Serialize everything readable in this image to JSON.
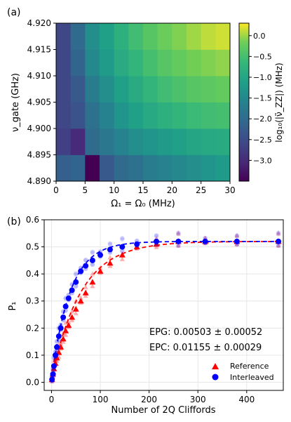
{
  "panel_a": {
    "label": "(a)",
    "xlabel": "Ω₁ = Ω₀ (MHz)",
    "ylabel": "ν_gate (GHz)",
    "colorbar_label": "log₁₀(|ν̃_ZZ|) (MHz)"
  },
  "panel_b": {
    "label": "(b)",
    "xlabel": "Number of 2Q Cliffords",
    "ylabel": "P₁",
    "epg_text": "EPG: 0.00503 ± 0.00052",
    "epc_text": "EPC: 0.01155 ± 0.00029",
    "legend_reference": "Reference",
    "legend_interleaved": "Interleaved"
  },
  "chart_data": [
    {
      "type": "heatmap",
      "title": "",
      "xlabel": "Ω₁ = Ω₀ (MHz)",
      "ylabel": "ν_gate (GHz)",
      "x_ticks": [
        0,
        5,
        10,
        15,
        20,
        25,
        30
      ],
      "y_ticks": [
        4.89,
        4.895,
        4.9,
        4.905,
        4.91,
        4.915,
        4.92
      ],
      "xlim": [
        0,
        30
      ],
      "ylim": [
        4.89,
        4.92
      ],
      "x_centers": [
        1.25,
        3.75,
        6.25,
        8.75,
        11.25,
        13.75,
        16.25,
        18.75,
        21.25,
        23.75,
        26.25,
        28.75
      ],
      "y_centers": [
        4.8925,
        4.8975,
        4.9025,
        4.9075,
        4.9125,
        4.9175
      ],
      "values_rows_bottom_to_top": [
        [
          -2.2,
          -2.1,
          -3.5,
          -2.3,
          -2.0,
          -1.9,
          -1.7,
          -1.6,
          -1.5,
          -1.4,
          -1.3,
          -1.2
        ],
        [
          -2.7,
          -3.0,
          -2.0,
          -1.8,
          -1.6,
          -1.4,
          -1.3,
          -1.2,
          -1.1,
          -1.0,
          -0.95,
          -0.9
        ],
        [
          -2.6,
          -2.4,
          -1.9,
          -1.6,
          -1.3,
          -1.1,
          -0.95,
          -0.8,
          -0.7,
          -0.6,
          -0.55,
          -0.5
        ],
        [
          -2.6,
          -2.3,
          -1.7,
          -1.4,
          -1.1,
          -0.9,
          -0.7,
          -0.55,
          -0.45,
          -0.35,
          -0.3,
          -0.25
        ],
        [
          -2.6,
          -2.1,
          -1.5,
          -1.2,
          -0.9,
          -0.7,
          -0.5,
          -0.35,
          -0.25,
          -0.15,
          -0.1,
          -0.05
        ],
        [
          -2.6,
          -2.0,
          -1.4,
          -1.1,
          -0.8,
          -0.55,
          -0.35,
          -0.2,
          -0.1,
          0.0,
          0.1,
          0.15
        ]
      ],
      "colorbar": {
        "label": "log₁₀(|ν̃_ZZ|) (MHz)",
        "ticks": [
          0.0,
          -0.5,
          -1.0,
          -1.5,
          -2.0,
          -2.5,
          -3.0
        ],
        "range": [
          -3.5,
          0.3
        ],
        "colormap": "viridis"
      }
    },
    {
      "type": "scatter",
      "title": "",
      "xlabel": "Number of 2Q Cliffords",
      "ylabel": "P₁",
      "xlim": [
        -15,
        475
      ],
      "ylim": [
        -0.03,
        0.6
      ],
      "x_ticks": [
        0,
        100,
        200,
        300,
        400
      ],
      "y_ticks": [
        0.0,
        0.1,
        0.2,
        0.3,
        0.4,
        0.5,
        0.6
      ],
      "grid": true,
      "legend_position": "bottom-right",
      "annotations": [
        "EPG: 0.00503 ± 0.00052",
        "EPC: 0.01155 ± 0.00029"
      ],
      "series": [
        {
          "name": "Reference",
          "color": "#ff0000",
          "marker": "triangle",
          "x": [
            1,
            3,
            5,
            8,
            11,
            15,
            19,
            24,
            29,
            35,
            42,
            50,
            60,
            70,
            84,
            100,
            120,
            145,
            175,
            215,
            260,
            315,
            380,
            465
          ],
          "y": [
            0.01,
            0.03,
            0.05,
            0.07,
            0.09,
            0.11,
            0.13,
            0.16,
            0.19,
            0.21,
            0.24,
            0.27,
            0.3,
            0.33,
            0.37,
            0.41,
            0.44,
            0.47,
            0.5,
            0.51,
            0.52,
            0.52,
            0.52,
            0.52
          ],
          "fit": {
            "A": 0.52,
            "B": 0.51,
            "decay_constant": 60
          }
        },
        {
          "name": "Interleaved",
          "color": "#0000ff",
          "marker": "circle",
          "x": [
            1,
            3,
            5,
            8,
            11,
            15,
            19,
            24,
            29,
            35,
            42,
            50,
            60,
            70,
            84,
            100,
            120,
            145,
            175,
            215,
            260,
            315,
            380,
            465
          ],
          "y": [
            0.01,
            0.03,
            0.06,
            0.1,
            0.13,
            0.17,
            0.2,
            0.24,
            0.28,
            0.31,
            0.34,
            0.37,
            0.41,
            0.43,
            0.45,
            0.47,
            0.49,
            0.5,
            0.51,
            0.52,
            0.52,
            0.52,
            0.52,
            0.52
          ],
          "fit": {
            "A": 0.52,
            "B": 0.51,
            "decay_constant": 38
          }
        }
      ]
    }
  ]
}
